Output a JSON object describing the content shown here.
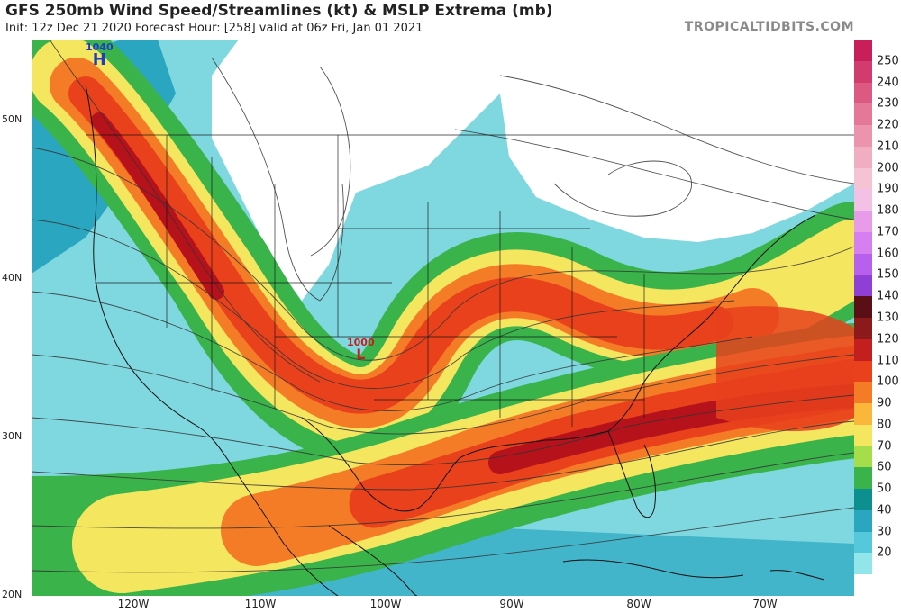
{
  "header": {
    "title": "GFS 250mb Wind Speed/Streamlines (kt) & MSLP Extrema (mb)",
    "subtitle": "Init: 12z Dec 21 2020   Forecast Hour: [258]   valid at 06z Fri, Jan 01 2021",
    "brand": "TROPICALTIDBITS.COM"
  },
  "lat_labels": [
    "50N",
    "40N",
    "30N",
    "20N"
  ],
  "lon_labels": [
    "120W",
    "110W",
    "100W",
    "90W",
    "80W",
    "70W"
  ],
  "colorbar": {
    "ticks": [
      "250",
      "240",
      "230",
      "220",
      "210",
      "200",
      "190",
      "180",
      "170",
      "160",
      "150",
      "140",
      "130",
      "120",
      "110",
      "100",
      "90",
      "80",
      "70",
      "60",
      "50",
      "40",
      "30",
      "20"
    ],
    "colors": [
      "#c81e5a",
      "#d23b6d",
      "#dc5a82",
      "#e57898",
      "#ec93ae",
      "#f1adc2",
      "#f5c3d4",
      "#f3c0e6",
      "#e89be8",
      "#d67ff0",
      "#b860ee",
      "#8f3fd6",
      "#5a0f16",
      "#8c1a1a",
      "#c41f1f",
      "#e8411c",
      "#f57c27",
      "#fbb73a",
      "#f5e660",
      "#a6de4b",
      "#39b34a",
      "#0e8f8f",
      "#2aa6c0",
      "#55c8dc",
      "#92e6ea",
      "#ffffff"
    ]
  },
  "pressure_centers": [
    {
      "type": "H",
      "value": "1040",
      "color": "#1e3cc8"
    },
    {
      "type": "L",
      "value": "1000",
      "color": "#c81e1e"
    }
  ],
  "map_colors": {
    "land_line": "#111111",
    "stream_line": "#333333",
    "calm": "#ffffff",
    "light": "#8fe3ea",
    "teal": "#2aa6c0",
    "green": "#39b34a",
    "lime": "#a6de4b",
    "yellow": "#f5e660",
    "orange": "#f57c27",
    "red": "#e8411c",
    "darkred": "#b5121b"
  }
}
